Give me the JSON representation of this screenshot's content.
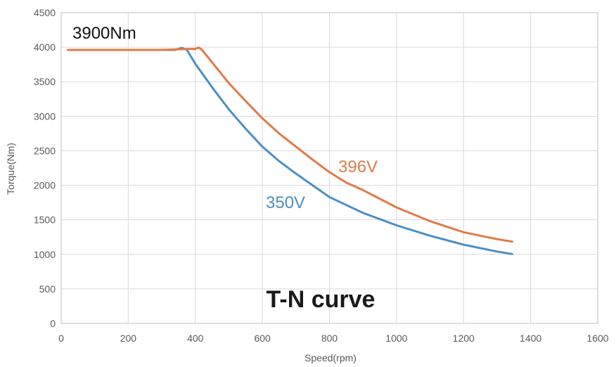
{
  "chart_data": {
    "type": "line",
    "title": "T-N curve",
    "xlabel": "Speed(rpm)",
    "ylabel": "Torque(Nm)",
    "xlim": [
      0,
      1600
    ],
    "ylim": [
      0,
      4500
    ],
    "xticks": [
      0,
      200,
      400,
      600,
      800,
      1000,
      1200,
      1400,
      1600
    ],
    "yticks": [
      0,
      500,
      1000,
      1500,
      2000,
      2500,
      3000,
      3500,
      4000,
      4500
    ],
    "grid": true,
    "annotation": "3900Nm",
    "series": [
      {
        "name": "350V",
        "color": "#4a8fc5",
        "x": [
          20,
          100,
          200,
          300,
          340,
          360,
          375,
          400,
          450,
          500,
          550,
          600,
          650,
          700,
          750,
          800,
          900,
          1000,
          1100,
          1200,
          1300,
          1345
        ],
        "y": [
          3960,
          3960,
          3960,
          3960,
          3960,
          3990,
          3960,
          3760,
          3420,
          3100,
          2820,
          2560,
          2350,
          2170,
          2000,
          1830,
          1600,
          1420,
          1270,
          1140,
          1040,
          1005
        ]
      },
      {
        "name": "396V",
        "color": "#e07a47",
        "x": [
          20,
          100,
          200,
          300,
          350,
          380,
          400,
          410,
          420,
          450,
          500,
          550,
          600,
          650,
          700,
          750,
          800,
          850,
          900,
          1000,
          1100,
          1200,
          1300,
          1345
        ],
        "y": [
          3960,
          3960,
          3960,
          3960,
          3970,
          3975,
          3975,
          3995,
          3960,
          3780,
          3480,
          3220,
          2970,
          2750,
          2560,
          2370,
          2190,
          2040,
          1930,
          1680,
          1480,
          1320,
          1220,
          1185
        ]
      }
    ]
  }
}
